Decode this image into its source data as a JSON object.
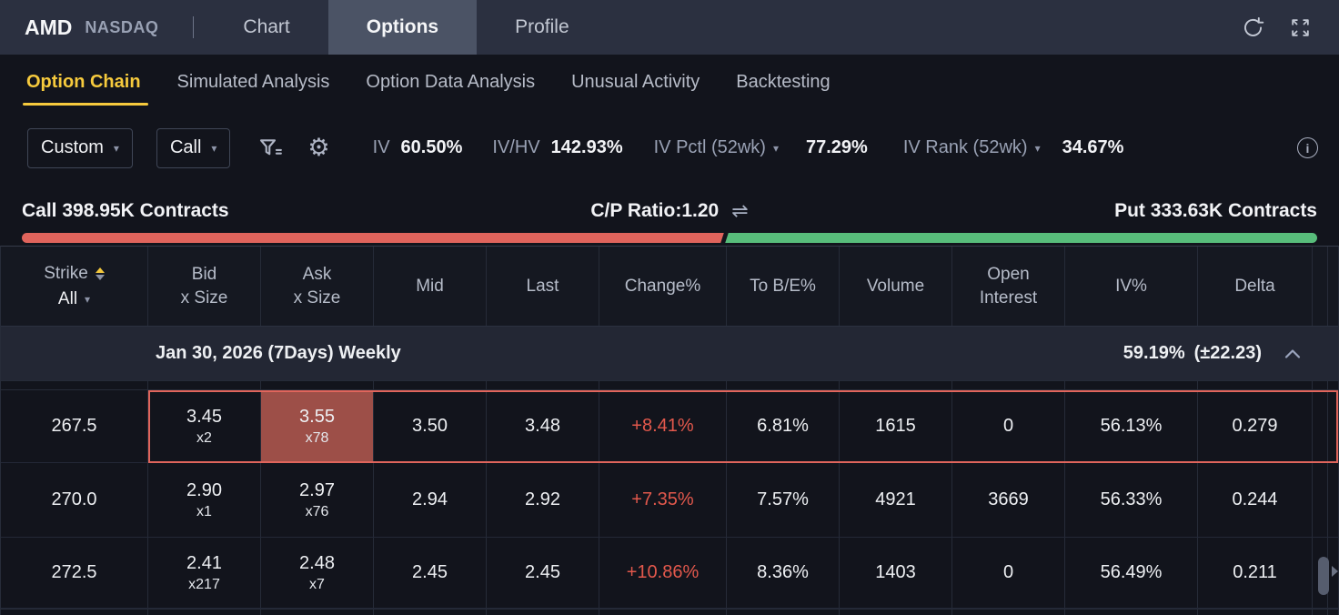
{
  "colors": {
    "accent_yellow": "#f6ca3d",
    "call_red": "#e0645c",
    "put_green": "#58bd7b",
    "change_red": "#e2584c",
    "ask_highlight_bg": "#9d4f48",
    "topbar_bg": "#2b3040",
    "active_tab_bg": "#4b5365"
  },
  "topbar": {
    "symbol": "AMD",
    "exchange": "NASDAQ",
    "tabs": [
      {
        "label": "Chart"
      },
      {
        "label": "Options"
      },
      {
        "label": "Profile"
      }
    ],
    "icons": [
      "refresh-icon",
      "fullscreen-icon"
    ]
  },
  "subnav": {
    "items": [
      {
        "label": "Option Chain"
      },
      {
        "label": "Simulated Analysis"
      },
      {
        "label": "Option Data Analysis"
      },
      {
        "label": "Unusual Activity"
      },
      {
        "label": "Backtesting"
      }
    ]
  },
  "toolbar": {
    "preset_dropdown": "Custom",
    "side_dropdown": "Call",
    "stats": [
      {
        "label": "IV",
        "value": "60.50%"
      },
      {
        "label": "IV/HV",
        "value": "142.93%"
      },
      {
        "label": "IV Pctl (52wk)",
        "value": "77.29%",
        "dropdown": true
      },
      {
        "label": "IV Rank (52wk)",
        "value": "34.67%",
        "dropdown": true
      }
    ]
  },
  "ratio": {
    "call_label": "Call 398.95K Contracts",
    "cp_label": "C/P Ratio:1.20",
    "put_label": "Put 333.63K Contracts",
    "call_pct": 54.2
  },
  "table": {
    "columns": [
      {
        "line1": "Strike"
      },
      {
        "line1": "Bid",
        "line2": "x Size"
      },
      {
        "line1": "Ask",
        "line2": "x Size"
      },
      {
        "line1": "Mid"
      },
      {
        "line1": "Last"
      },
      {
        "line1": "Change%"
      },
      {
        "line1": "To B/E%"
      },
      {
        "line1": "Volume"
      },
      {
        "line1": "Open",
        "line2": "Interest"
      },
      {
        "line1": "IV%"
      },
      {
        "line1": "Delta"
      }
    ],
    "strike_filter": "All",
    "expiry": {
      "label": "Jan 30, 2026 (7Days) Weekly",
      "iv": "59.19%",
      "expected_move": "(±22.23)"
    },
    "rows": [
      {
        "strike": "267.5",
        "bid": "3.45",
        "bid_size": "x2",
        "ask": "3.55",
        "ask_size": "x78",
        "mid": "3.50",
        "last": "3.48",
        "change": "+8.41%",
        "to_be": "6.81%",
        "volume": "1615",
        "oi": "0",
        "iv": "56.13%",
        "delta": "0.279"
      },
      {
        "strike": "270.0",
        "bid": "2.90",
        "bid_size": "x1",
        "ask": "2.97",
        "ask_size": "x76",
        "mid": "2.94",
        "last": "2.92",
        "change": "+7.35%",
        "to_be": "7.57%",
        "volume": "4921",
        "oi": "3669",
        "iv": "56.33%",
        "delta": "0.244"
      },
      {
        "strike": "272.5",
        "bid": "2.41",
        "bid_size": "x217",
        "ask": "2.48",
        "ask_size": "x7",
        "mid": "2.45",
        "last": "2.45",
        "change": "+10.86%",
        "to_be": "8.36%",
        "volume": "1403",
        "oi": "0",
        "iv": "56.49%",
        "delta": "0.211"
      }
    ]
  }
}
